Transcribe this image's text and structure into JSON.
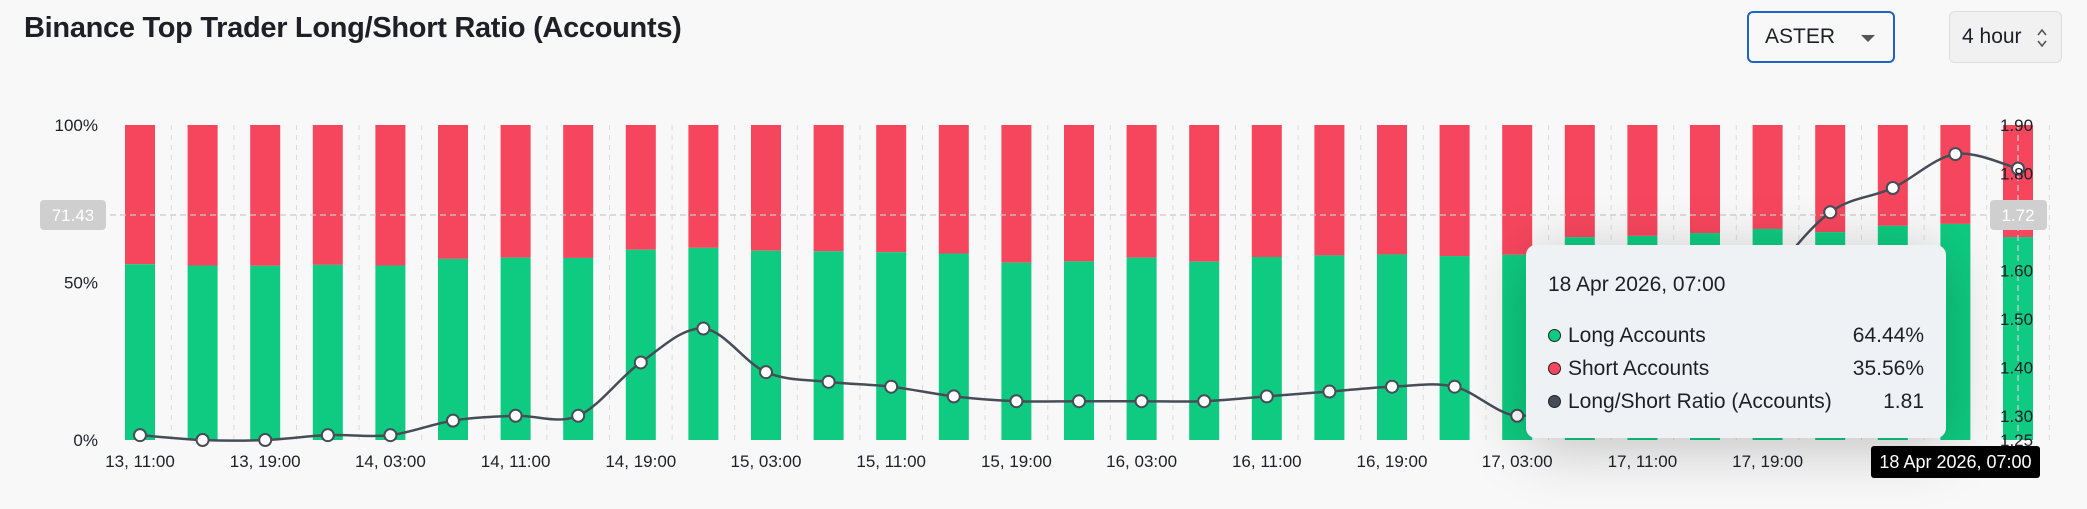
{
  "page": {
    "title": "Binance Top Trader Long/Short Ratio (Accounts)"
  },
  "controls": {
    "symbol": {
      "value": "ASTER"
    },
    "period": {
      "value": "4 hour"
    }
  },
  "colors": {
    "long": "#0ecb81",
    "short": "#f6465d",
    "ratio_line": "#474d57",
    "tooltip_bg": "#eff2f5"
  },
  "tooltip": {
    "time": "18 Apr 2026, 07:00",
    "rows": [
      {
        "label": "Long Accounts",
        "value": "64.44%",
        "color": "#0ecb81"
      },
      {
        "label": "Short Accounts",
        "value": "35.56%",
        "color": "#f6465d"
      },
      {
        "label": "Long/Short Ratio (Accounts)",
        "value": "1.81",
        "color": "#474d57"
      }
    ]
  },
  "crosshair": {
    "left_value": "71.43",
    "right_value": "1.72",
    "x_label": "18 Apr 2026, 07:00"
  },
  "chart_data": {
    "type": "bar",
    "title": "Binance Top Trader Long/Short Ratio (Accounts)",
    "x_tick_labels": [
      "13, 11:00",
      "13, 19:00",
      "14, 03:00",
      "14, 11:00",
      "14, 19:00",
      "15, 03:00",
      "15, 11:00",
      "15, 19:00",
      "16, 03:00",
      "16, 11:00",
      "16, 19:00",
      "17, 03:00",
      "17, 11:00",
      "17, 19:00"
    ],
    "left_axis": {
      "ticks": [
        "0%",
        "50%",
        "100%"
      ],
      "range": [
        0,
        100
      ]
    },
    "right_axis": {
      "ticks": [
        "1.25",
        "1.30",
        "1.40",
        "1.50",
        "1.60",
        "1.70",
        "1.80",
        "1.90"
      ],
      "range": [
        1.25,
        1.9
      ]
    },
    "grid": "vertical dashed",
    "series": [
      {
        "name": "Long Accounts",
        "axis": "left",
        "values": [
          55.8,
          55.4,
          55.3,
          55.6,
          55.4,
          57.5,
          57.9,
          57.8,
          60.4,
          61.0,
          60.1,
          59.9,
          59.6,
          59.2,
          56.3,
          56.7,
          57.9,
          56.6,
          58.1,
          58.6,
          58.9,
          58.4,
          58.8,
          64.4,
          64.8,
          65.7,
          67.0,
          66.0,
          68.0,
          68.6,
          64.44
        ]
      },
      {
        "name": "Short Accounts",
        "axis": "left",
        "values": [
          44.2,
          44.6,
          44.7,
          44.4,
          44.6,
          42.5,
          42.1,
          42.2,
          39.6,
          39.0,
          39.9,
          40.1,
          40.4,
          40.8,
          43.7,
          43.3,
          42.1,
          43.4,
          41.9,
          41.4,
          41.1,
          41.6,
          41.2,
          35.6,
          35.2,
          34.3,
          33.0,
          34.0,
          32.0,
          31.4,
          35.56
        ]
      },
      {
        "name": "Long/Short Ratio (Accounts)",
        "axis": "right",
        "values": [
          1.26,
          1.25,
          1.25,
          1.26,
          1.26,
          1.29,
          1.3,
          1.3,
          1.41,
          1.48,
          1.39,
          1.37,
          1.36,
          1.34,
          1.33,
          1.33,
          1.33,
          1.33,
          1.34,
          1.35,
          1.36,
          1.36,
          1.3,
          1.34,
          1.38,
          1.42,
          1.58,
          1.72,
          1.77,
          1.84,
          1.81
        ]
      }
    ]
  }
}
